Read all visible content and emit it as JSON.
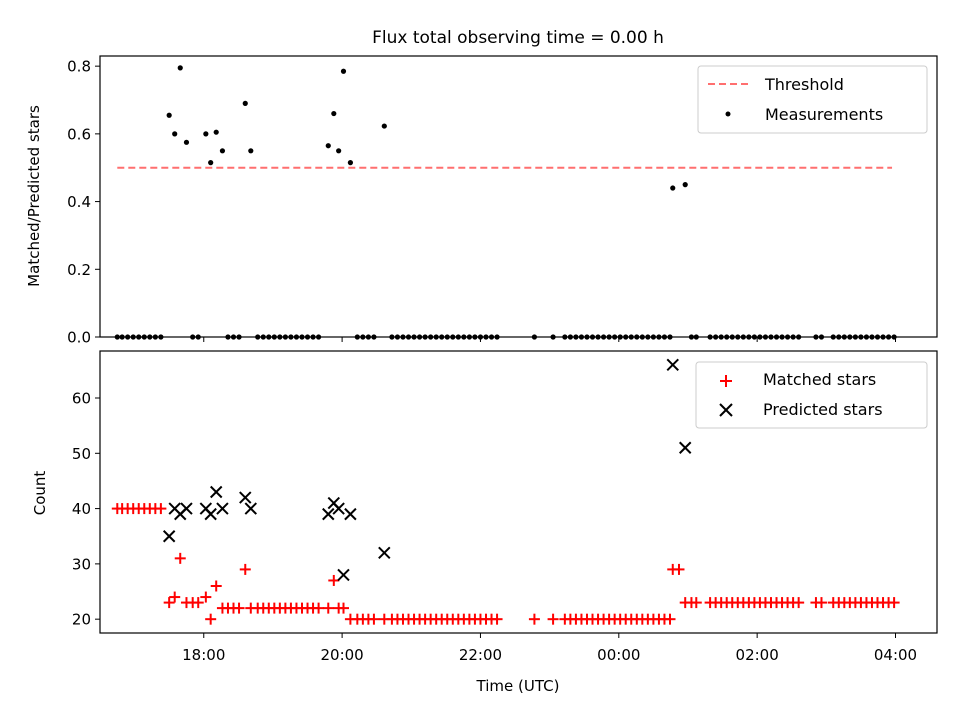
{
  "chart_data": [
    {
      "type": "scatter",
      "title": "Flux total observing time = 0.00 h",
      "ylabel": "Matched/Predicted stars",
      "xlabel": "",
      "xlim": [
        16.5,
        28.6
      ],
      "ylim": [
        0,
        0.83
      ],
      "x_ticks": [
        18,
        20,
        22,
        24,
        26,
        28
      ],
      "y_ticks": [
        0.0,
        0.2,
        0.4,
        0.6,
        0.8
      ],
      "y_tick_labels": [
        "0.0",
        "0.2",
        "0.4",
        "0.6",
        "0.8"
      ],
      "legend_position": "top-right",
      "series": [
        {
          "name": "Threshold",
          "style": "dashed-line",
          "color": "#ff6f6f",
          "x": [
            16.75,
            27.95
          ],
          "y": [
            0.5,
            0.5
          ]
        },
        {
          "name": "Measurements",
          "style": "dot",
          "color": "#000000",
          "points": [
            [
              16.75,
              0
            ],
            [
              16.82,
              0
            ],
            [
              16.9,
              0
            ],
            [
              16.98,
              0
            ],
            [
              17.06,
              0
            ],
            [
              17.14,
              0
            ],
            [
              17.22,
              0
            ],
            [
              17.3,
              0
            ],
            [
              17.38,
              0
            ],
            [
              17.5,
              0.655
            ],
            [
              17.58,
              0.6
            ],
            [
              17.66,
              0.795
            ],
            [
              17.75,
              0.575
            ],
            [
              17.84,
              0
            ],
            [
              17.92,
              0
            ],
            [
              18.03,
              0.6
            ],
            [
              18.1,
              0.515
            ],
            [
              18.18,
              0.605
            ],
            [
              18.27,
              0.55
            ],
            [
              18.35,
              0
            ],
            [
              18.43,
              0
            ],
            [
              18.51,
              0
            ],
            [
              18.6,
              0.69
            ],
            [
              18.68,
              0.55
            ],
            [
              18.78,
              0
            ],
            [
              18.86,
              0
            ],
            [
              18.94,
              0
            ],
            [
              19.02,
              0
            ],
            [
              19.1,
              0
            ],
            [
              19.18,
              0
            ],
            [
              19.26,
              0
            ],
            [
              19.34,
              0
            ],
            [
              19.42,
              0
            ],
            [
              19.5,
              0
            ],
            [
              19.58,
              0
            ],
            [
              19.66,
              0
            ],
            [
              19.8,
              0.565
            ],
            [
              19.88,
              0.66
            ],
            [
              19.95,
              0.55
            ],
            [
              20.02,
              0.785
            ],
            [
              20.12,
              0.515
            ],
            [
              20.22,
              0
            ],
            [
              20.3,
              0
            ],
            [
              20.38,
              0
            ],
            [
              20.46,
              0
            ],
            [
              20.61,
              0.623
            ],
            [
              20.72,
              0
            ],
            [
              20.8,
              0
            ],
            [
              20.88,
              0
            ],
            [
              20.96,
              0
            ],
            [
              21.04,
              0
            ],
            [
              21.12,
              0
            ],
            [
              21.2,
              0
            ],
            [
              21.28,
              0
            ],
            [
              21.36,
              0
            ],
            [
              21.44,
              0
            ],
            [
              21.52,
              0
            ],
            [
              21.6,
              0
            ],
            [
              21.68,
              0
            ],
            [
              21.76,
              0
            ],
            [
              21.84,
              0
            ],
            [
              21.92,
              0
            ],
            [
              22,
              0
            ],
            [
              22.08,
              0
            ],
            [
              22.16,
              0
            ],
            [
              22.24,
              0
            ],
            [
              22.78,
              0
            ],
            [
              23.05,
              0
            ],
            [
              23.22,
              0
            ],
            [
              23.3,
              0
            ],
            [
              23.38,
              0
            ],
            [
              23.46,
              0
            ],
            [
              23.54,
              0
            ],
            [
              23.62,
              0
            ],
            [
              23.7,
              0
            ],
            [
              23.78,
              0
            ],
            [
              23.86,
              0
            ],
            [
              23.94,
              0
            ],
            [
              24.02,
              0
            ],
            [
              24.1,
              0
            ],
            [
              24.18,
              0
            ],
            [
              24.26,
              0
            ],
            [
              24.34,
              0
            ],
            [
              24.42,
              0
            ],
            [
              24.5,
              0
            ],
            [
              24.58,
              0
            ],
            [
              24.66,
              0
            ],
            [
              24.74,
              0
            ],
            [
              24.78,
              0.44
            ],
            [
              24.96,
              0.45
            ],
            [
              25.05,
              0
            ],
            [
              25.12,
              0
            ],
            [
              25.32,
              0
            ],
            [
              25.4,
              0
            ],
            [
              25.48,
              0
            ],
            [
              25.56,
              0
            ],
            [
              25.64,
              0
            ],
            [
              25.72,
              0
            ],
            [
              25.8,
              0
            ],
            [
              25.88,
              0
            ],
            [
              25.96,
              0
            ],
            [
              26.04,
              0
            ],
            [
              26.12,
              0
            ],
            [
              26.2,
              0
            ],
            [
              26.28,
              0
            ],
            [
              26.36,
              0
            ],
            [
              26.44,
              0
            ],
            [
              26.52,
              0
            ],
            [
              26.6,
              0
            ],
            [
              26.85,
              0
            ],
            [
              26.93,
              0
            ],
            [
              27.1,
              0
            ],
            [
              27.18,
              0
            ],
            [
              27.26,
              0
            ],
            [
              27.34,
              0
            ],
            [
              27.42,
              0
            ],
            [
              27.5,
              0
            ],
            [
              27.58,
              0
            ],
            [
              27.66,
              0
            ],
            [
              27.74,
              0
            ],
            [
              27.82,
              0
            ],
            [
              27.9,
              0
            ],
            [
              27.98,
              0
            ]
          ]
        }
      ]
    },
    {
      "type": "scatter",
      "title": "",
      "xlabel": "Time (UTC)",
      "ylabel": "Count",
      "xlim": [
        16.5,
        28.6
      ],
      "ylim": [
        17.5,
        68.5
      ],
      "x_ticks": [
        18,
        20,
        22,
        24,
        26,
        28
      ],
      "x_tick_labels": [
        "18:00",
        "20:00",
        "22:00",
        "00:00",
        "02:00",
        "04:00"
      ],
      "y_ticks": [
        20,
        30,
        40,
        50,
        60
      ],
      "y_tick_labels": [
        "20",
        "30",
        "40",
        "50",
        "60"
      ],
      "legend_position": "top-right",
      "series": [
        {
          "name": "Matched stars",
          "marker": "+",
          "color": "#ff0000",
          "points": [
            [
              16.75,
              40
            ],
            [
              16.82,
              40
            ],
            [
              16.9,
              40
            ],
            [
              16.98,
              40
            ],
            [
              17.06,
              40
            ],
            [
              17.14,
              40
            ],
            [
              17.22,
              40
            ],
            [
              17.3,
              40
            ],
            [
              17.38,
              40
            ],
            [
              17.5,
              23
            ],
            [
              17.58,
              24
            ],
            [
              17.66,
              31
            ],
            [
              17.75,
              23
            ],
            [
              17.84,
              23
            ],
            [
              17.92,
              23
            ],
            [
              18.03,
              24
            ],
            [
              18.1,
              20
            ],
            [
              18.18,
              26
            ],
            [
              18.27,
              22
            ],
            [
              18.35,
              22
            ],
            [
              18.43,
              22
            ],
            [
              18.51,
              22
            ],
            [
              18.6,
              29
            ],
            [
              18.68,
              22
            ],
            [
              18.78,
              22
            ],
            [
              18.86,
              22
            ],
            [
              18.94,
              22
            ],
            [
              19.02,
              22
            ],
            [
              19.1,
              22
            ],
            [
              19.18,
              22
            ],
            [
              19.26,
              22
            ],
            [
              19.34,
              22
            ],
            [
              19.42,
              22
            ],
            [
              19.5,
              22
            ],
            [
              19.58,
              22
            ],
            [
              19.66,
              22
            ],
            [
              19.8,
              22
            ],
            [
              19.88,
              27
            ],
            [
              19.95,
              22
            ],
            [
              20.02,
              22
            ],
            [
              20.12,
              20
            ],
            [
              20.22,
              20
            ],
            [
              20.3,
              20
            ],
            [
              20.38,
              20
            ],
            [
              20.46,
              20
            ],
            [
              20.61,
              20
            ],
            [
              20.72,
              20
            ],
            [
              20.8,
              20
            ],
            [
              20.88,
              20
            ],
            [
              20.96,
              20
            ],
            [
              21.04,
              20
            ],
            [
              21.12,
              20
            ],
            [
              21.2,
              20
            ],
            [
              21.28,
              20
            ],
            [
              21.36,
              20
            ],
            [
              21.44,
              20
            ],
            [
              21.52,
              20
            ],
            [
              21.6,
              20
            ],
            [
              21.68,
              20
            ],
            [
              21.76,
              20
            ],
            [
              21.84,
              20
            ],
            [
              21.92,
              20
            ],
            [
              22,
              20
            ],
            [
              22.08,
              20
            ],
            [
              22.16,
              20
            ],
            [
              22.24,
              20
            ],
            [
              22.78,
              20
            ],
            [
              23.05,
              20
            ],
            [
              23.22,
              20
            ],
            [
              23.3,
              20
            ],
            [
              23.38,
              20
            ],
            [
              23.46,
              20
            ],
            [
              23.54,
              20
            ],
            [
              23.62,
              20
            ],
            [
              23.7,
              20
            ],
            [
              23.78,
              20
            ],
            [
              23.86,
              20
            ],
            [
              23.94,
              20
            ],
            [
              24.02,
              20
            ],
            [
              24.1,
              20
            ],
            [
              24.18,
              20
            ],
            [
              24.26,
              20
            ],
            [
              24.34,
              20
            ],
            [
              24.42,
              20
            ],
            [
              24.5,
              20
            ],
            [
              24.58,
              20
            ],
            [
              24.66,
              20
            ],
            [
              24.74,
              20
            ],
            [
              24.78,
              29
            ],
            [
              24.87,
              29
            ],
            [
              24.96,
              23
            ],
            [
              25.05,
              23
            ],
            [
              25.12,
              23
            ],
            [
              25.32,
              23
            ],
            [
              25.4,
              23
            ],
            [
              25.48,
              23
            ],
            [
              25.56,
              23
            ],
            [
              25.64,
              23
            ],
            [
              25.72,
              23
            ],
            [
              25.8,
              23
            ],
            [
              25.88,
              23
            ],
            [
              25.96,
              23
            ],
            [
              26.04,
              23
            ],
            [
              26.12,
              23
            ],
            [
              26.2,
              23
            ],
            [
              26.28,
              23
            ],
            [
              26.36,
              23
            ],
            [
              26.44,
              23
            ],
            [
              26.52,
              23
            ],
            [
              26.6,
              23
            ],
            [
              26.85,
              23
            ],
            [
              26.93,
              23
            ],
            [
              27.1,
              23
            ],
            [
              27.18,
              23
            ],
            [
              27.26,
              23
            ],
            [
              27.34,
              23
            ],
            [
              27.42,
              23
            ],
            [
              27.5,
              23
            ],
            [
              27.58,
              23
            ],
            [
              27.66,
              23
            ],
            [
              27.74,
              23
            ],
            [
              27.82,
              23
            ],
            [
              27.9,
              23
            ],
            [
              27.98,
              23
            ]
          ]
        },
        {
          "name": "Predicted stars",
          "marker": "x",
          "color": "#000000",
          "points": [
            [
              17.5,
              35
            ],
            [
              17.58,
              40
            ],
            [
              17.66,
              39
            ],
            [
              17.75,
              40
            ],
            [
              18.03,
              40
            ],
            [
              18.1,
              39
            ],
            [
              18.18,
              43
            ],
            [
              18.27,
              40
            ],
            [
              18.6,
              42
            ],
            [
              18.68,
              40
            ],
            [
              19.8,
              39
            ],
            [
              19.88,
              41
            ],
            [
              19.95,
              40
            ],
            [
              20.02,
              28
            ],
            [
              20.12,
              39
            ],
            [
              20.61,
              32
            ],
            [
              24.78,
              66
            ],
            [
              24.96,
              51
            ]
          ]
        }
      ]
    }
  ]
}
